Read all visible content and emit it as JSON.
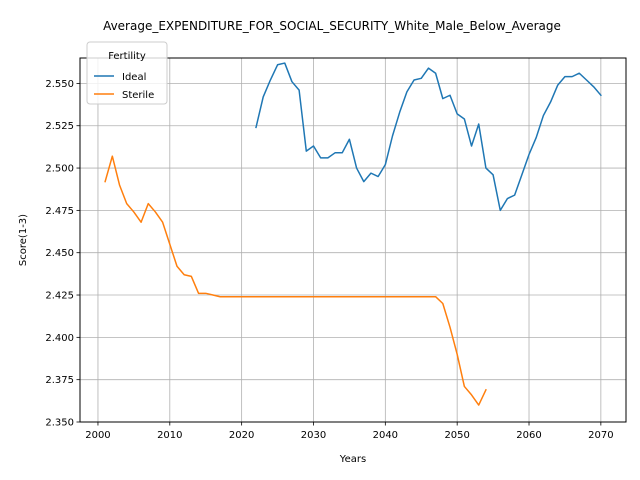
{
  "chart_data": {
    "type": "line",
    "title": "Average_EXPENDITURE_FOR_SOCIAL_SECURITY_White_Male_Below_Average",
    "xlabel": "Years",
    "ylabel": "Score(1-3)",
    "xlim": [
      1997.5,
      2073.5
    ],
    "ylim": [
      2.35,
      2.565
    ],
    "xticks": [
      2000,
      2010,
      2020,
      2030,
      2040,
      2050,
      2060,
      2070
    ],
    "yticks": [
      2.35,
      2.375,
      2.4,
      2.425,
      2.45,
      2.475,
      2.5,
      2.525,
      2.55
    ],
    "ytick_labels": [
      "2.350",
      "2.375",
      "2.400",
      "2.425",
      "2.450",
      "2.475",
      "2.500",
      "2.525",
      "2.550"
    ],
    "grid": true,
    "legend": {
      "title": "Fertility",
      "position": "top-left"
    },
    "series": [
      {
        "name": "Ideal",
        "color": "#1f77b4",
        "x": [
          2022,
          2023,
          2024,
          2025,
          2026,
          2027,
          2028,
          2029,
          2030,
          2031,
          2032,
          2033,
          2034,
          2035,
          2036,
          2037,
          2038,
          2039,
          2040,
          2041,
          2042,
          2043,
          2044,
          2045,
          2046,
          2047,
          2048,
          2049,
          2050,
          2051,
          2052,
          2053,
          2054,
          2055,
          2056,
          2057,
          2058,
          2059,
          2060,
          2061,
          2062,
          2063,
          2064,
          2065,
          2066,
          2067,
          2068,
          2069,
          2070
        ],
        "y": [
          2.524,
          2.542,
          2.552,
          2.561,
          2.562,
          2.551,
          2.546,
          2.51,
          2.513,
          2.506,
          2.506,
          2.509,
          2.509,
          2.517,
          2.5,
          2.492,
          2.497,
          2.495,
          2.502,
          2.519,
          2.533,
          2.545,
          2.552,
          2.553,
          2.559,
          2.556,
          2.541,
          2.543,
          2.532,
          2.529,
          2.513,
          2.526,
          2.5,
          2.496,
          2.475,
          2.482,
          2.484,
          2.496,
          2.508,
          2.518,
          2.531,
          2.539,
          2.549,
          2.554,
          2.554,
          2.556,
          2.552,
          2.548,
          2.543
        ]
      },
      {
        "name": "Sterile",
        "color": "#ff7f0e",
        "x": [
          2001,
          2002,
          2003,
          2004,
          2005,
          2006,
          2007,
          2008,
          2009,
          2010,
          2011,
          2012,
          2013,
          2014,
          2015,
          2016,
          2017,
          2018,
          2019,
          2020,
          2021,
          2022,
          2023,
          2024,
          2025,
          2026,
          2027,
          2028,
          2029,
          2030,
          2031,
          2032,
          2033,
          2034,
          2035,
          2036,
          2037,
          2038,
          2039,
          2040,
          2041,
          2042,
          2043,
          2044,
          2045,
          2046,
          2047,
          2048,
          2049,
          2050,
          2051,
          2052,
          2053,
          2054
        ],
        "y": [
          2.492,
          2.507,
          2.49,
          2.479,
          2.474,
          2.468,
          2.479,
          2.474,
          2.468,
          2.455,
          2.442,
          2.437,
          2.436,
          2.426,
          2.426,
          2.425,
          2.424,
          2.424,
          2.424,
          2.424,
          2.424,
          2.424,
          2.424,
          2.424,
          2.424,
          2.424,
          2.424,
          2.424,
          2.424,
          2.424,
          2.424,
          2.424,
          2.424,
          2.424,
          2.424,
          2.424,
          2.424,
          2.424,
          2.424,
          2.424,
          2.424,
          2.424,
          2.424,
          2.424,
          2.424,
          2.424,
          2.424,
          2.42,
          2.406,
          2.39,
          2.371,
          2.366,
          2.36,
          2.369
        ]
      }
    ]
  }
}
